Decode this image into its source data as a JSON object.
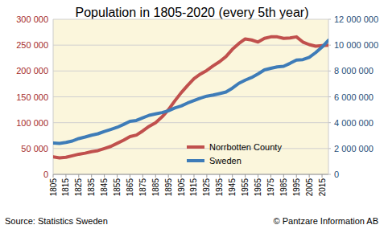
{
  "chart_data": {
    "type": "line",
    "title": "Population in 1805-2020 (every 5th year)",
    "annotations": [
      "Source: Statistics Sweden",
      "© Pantzare Information AB"
    ],
    "x": [
      1805,
      1810,
      1815,
      1820,
      1825,
      1830,
      1835,
      1840,
      1845,
      1850,
      1855,
      1860,
      1865,
      1870,
      1875,
      1880,
      1885,
      1890,
      1895,
      1900,
      1905,
      1910,
      1915,
      1920,
      1925,
      1930,
      1935,
      1940,
      1945,
      1950,
      1955,
      1960,
      1965,
      1970,
      1975,
      1980,
      1985,
      1990,
      1995,
      2000,
      2005,
      2010,
      2015,
      2020
    ],
    "xlim": [
      1805,
      2020
    ],
    "xticks": [
      1805,
      1815,
      1825,
      1835,
      1845,
      1855,
      1865,
      1875,
      1885,
      1895,
      1905,
      1915,
      1925,
      1935,
      1945,
      1955,
      1965,
      1975,
      1985,
      1995,
      2005,
      2015
    ],
    "ylim": [
      0,
      300000
    ],
    "yticks": [
      0,
      {
        "value": 50000,
        "label": "50 000"
      },
      {
        "value": 100000,
        "label": "100 000"
      },
      {
        "value": 150000,
        "label": "150 000"
      },
      {
        "value": 200000,
        "label": "200 000"
      },
      {
        "value": 250000,
        "label": "250 000"
      },
      {
        "value": 300000,
        "label": "300 000"
      }
    ],
    "y2lim": [
      0,
      12000000
    ],
    "y2ticks": [
      0,
      {
        "value": 2000000,
        "label": "2 000 000"
      },
      {
        "value": 4000000,
        "label": "4 000 000"
      },
      {
        "value": 6000000,
        "label": "6 000 000"
      },
      {
        "value": 8000000,
        "label": "8 000 000"
      },
      {
        "value": 10000000,
        "label": "10 000 000"
      },
      {
        "value": 12000000,
        "label": "12 000 000"
      }
    ],
    "grid": true,
    "legend": "lower right",
    "series": [
      {
        "name": "Norrbotten County",
        "color": "#c0504d",
        "values": [
          34000,
          32000,
          33000,
          36000,
          39000,
          41000,
          44000,
          46000,
          50000,
          54000,
          60000,
          66000,
          73000,
          76000,
          84000,
          93000,
          100000,
          111000,
          125000,
          142000,
          158000,
          172000,
          185000,
          194000,
          201000,
          210000,
          218000,
          228000,
          242000,
          253000,
          262000,
          260000,
          256000,
          263000,
          266000,
          266000,
          263000,
          264000,
          266000,
          256000,
          251000,
          248000,
          249000,
          250000
        ]
      },
      {
        "name": "Sweden",
        "color": "#3e7cb8",
        "axis": "y2",
        "values": [
          2420000,
          2400000,
          2470000,
          2580000,
          2770000,
          2890000,
          3030000,
          3140000,
          3320000,
          3480000,
          3640000,
          3860000,
          4100000,
          4170000,
          4380000,
          4570000,
          4680000,
          4780000,
          4920000,
          5140000,
          5290000,
          5520000,
          5710000,
          5900000,
          6050000,
          6140000,
          6250000,
          6370000,
          6670000,
          7040000,
          7290000,
          7500000,
          7770000,
          8080000,
          8210000,
          8320000,
          8360000,
          8590000,
          8840000,
          8880000,
          9050000,
          9420000,
          9850000,
          10380000
        ]
      }
    ]
  }
}
